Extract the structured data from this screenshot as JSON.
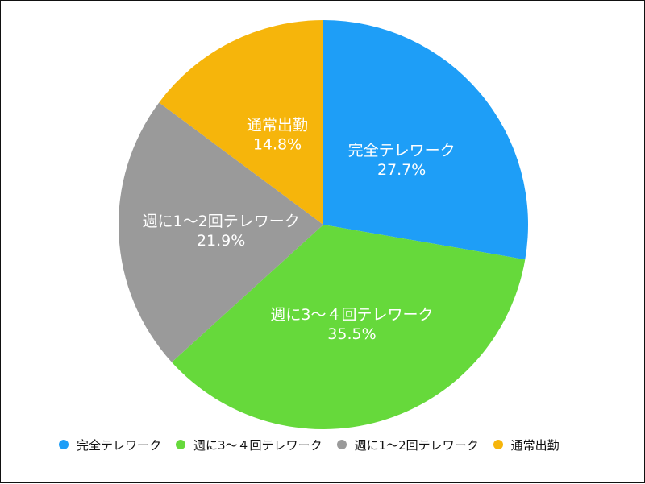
{
  "chart_data": {
    "type": "pie",
    "title": "",
    "slices": [
      {
        "label": "完全テレワーク",
        "value": 27.7,
        "value_label": "27.7%",
        "color": "#1e9ef7"
      },
      {
        "label": "週に3〜４回テレワーク",
        "value": 35.5,
        "value_label": "35.5%",
        "color": "#66d93b"
      },
      {
        "label": "週に1〜2回テレワーク",
        "value": 21.9,
        "value_label": "21.9%",
        "color": "#9a9a9a"
      },
      {
        "label": "通常出勤",
        "value": 14.8,
        "value_label": "14.8%",
        "color": "#f6b50b"
      }
    ],
    "start_angle": "12 o'clock",
    "direction": "clockwise",
    "legend_position": "bottom-left"
  }
}
